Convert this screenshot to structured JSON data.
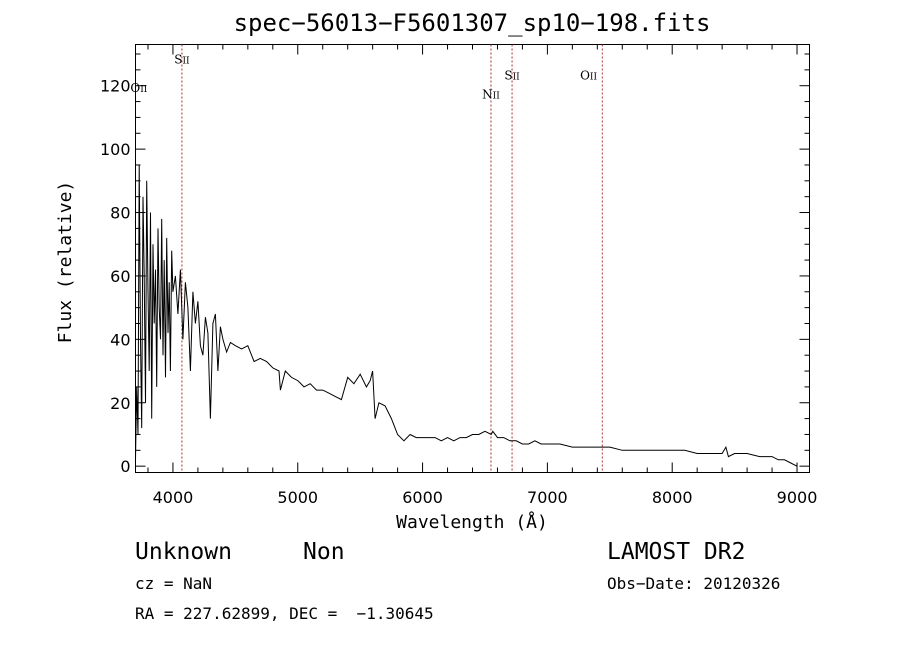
{
  "chart_data": {
    "type": "line",
    "title": "spec−56013−F5601307_sp10−198.fits",
    "xlabel": "Wavelength (Å)",
    "ylabel": "Flux (relative)",
    "xlim": [
      3700,
      9100
    ],
    "ylim": [
      -2,
      133
    ],
    "x_ticks": [
      4000,
      5000,
      6000,
      7000,
      8000,
      9000
    ],
    "y_ticks": [
      0,
      20,
      40,
      60,
      80,
      100,
      120
    ],
    "grid": false,
    "series": [
      {
        "x": [
          3700,
          3710,
          3720,
          3730,
          3740,
          3750,
          3760,
          3770,
          3780,
          3790,
          3800,
          3810,
          3820,
          3830,
          3840,
          3850,
          3860,
          3870,
          3880,
          3890,
          3900,
          3910,
          3920,
          3930,
          3940,
          3950,
          3960,
          3970,
          3980,
          3990,
          4000,
          4020,
          4040,
          4060,
          4080,
          4100,
          4120,
          4140,
          4160,
          4180,
          4200,
          4220,
          4240,
          4260,
          4280,
          4300,
          4320,
          4340,
          4360,
          4380,
          4400,
          4430,
          4460,
          4500,
          4550,
          4600,
          4650,
          4700,
          4750,
          4800,
          4850,
          4861,
          4900,
          4950,
          5000,
          5050,
          5100,
          5150,
          5200,
          5250,
          5300,
          5350,
          5400,
          5450,
          5500,
          5550,
          5580,
          5600,
          5620,
          5650,
          5700,
          5750,
          5780,
          5800,
          5850,
          5900,
          5950,
          6000,
          6050,
          6100,
          6150,
          6200,
          6250,
          6300,
          6350,
          6400,
          6450,
          6500,
          6550,
          6563,
          6600,
          6650,
          6700,
          6750,
          6800,
          6850,
          6900,
          6950,
          7000,
          7100,
          7200,
          7300,
          7400,
          7500,
          7600,
          7700,
          7800,
          7900,
          8000,
          8100,
          8200,
          8300,
          8400,
          8430,
          8450,
          8500,
          8600,
          8700,
          8800,
          8850,
          8900,
          8950,
          9000
        ],
        "y": [
          2,
          25,
          10,
          95,
          40,
          12,
          85,
          60,
          20,
          90,
          55,
          30,
          80,
          15,
          70,
          45,
          62,
          25,
          75,
          50,
          40,
          78,
          35,
          65,
          28,
          72,
          42,
          58,
          30,
          68,
          55,
          60,
          48,
          62,
          40,
          58,
          50,
          30,
          55,
          45,
          52,
          38,
          35,
          47,
          42,
          15,
          45,
          48,
          30,
          44,
          40,
          36,
          39,
          38,
          37,
          38,
          33,
          34,
          33,
          31,
          30,
          24,
          30,
          28,
          27,
          25,
          26,
          24,
          24,
          23,
          22,
          21,
          28,
          26,
          29,
          25,
          27,
          30,
          15,
          20,
          19,
          15,
          12,
          10,
          8,
          10,
          9,
          9,
          9,
          9,
          8,
          9,
          8,
          9,
          9,
          10,
          10,
          11,
          10,
          11,
          9,
          9,
          8,
          8,
          7,
          7,
          8,
          7,
          7,
          7,
          6,
          6,
          6,
          6,
          5,
          5,
          5,
          5,
          5,
          5,
          4,
          4,
          4,
          6,
          3,
          4,
          4,
          3,
          3,
          2,
          2,
          1,
          0
        ]
      }
    ],
    "annotations": [
      {
        "x": 3727,
        "main": "O",
        "roman": "II",
        "y": 118
      },
      {
        "x": 4072,
        "main": "S",
        "roman": "II",
        "y": 127
      },
      {
        "x": 6548,
        "main": "N",
        "roman": "II",
        "y": 116
      },
      {
        "x": 6717,
        "main": "S",
        "roman": "II",
        "y": 122
      },
      {
        "x": 7330,
        "main": "O",
        "roman": "II",
        "y": 122
      }
    ],
    "line_markers_x": [
      4072,
      6548,
      6717,
      7440
    ]
  },
  "info": {
    "class": "Unknown",
    "subclass": "Non",
    "survey": "LAMOST DR2",
    "cz": "cz = NaN",
    "obs_date": "Obs−Date: 20120326",
    "coords": "RA = 227.62899, DEC =  −1.30645"
  },
  "colors": {
    "spectrum": "#000000",
    "marker_line": "#b03030",
    "axes": "#000000"
  }
}
